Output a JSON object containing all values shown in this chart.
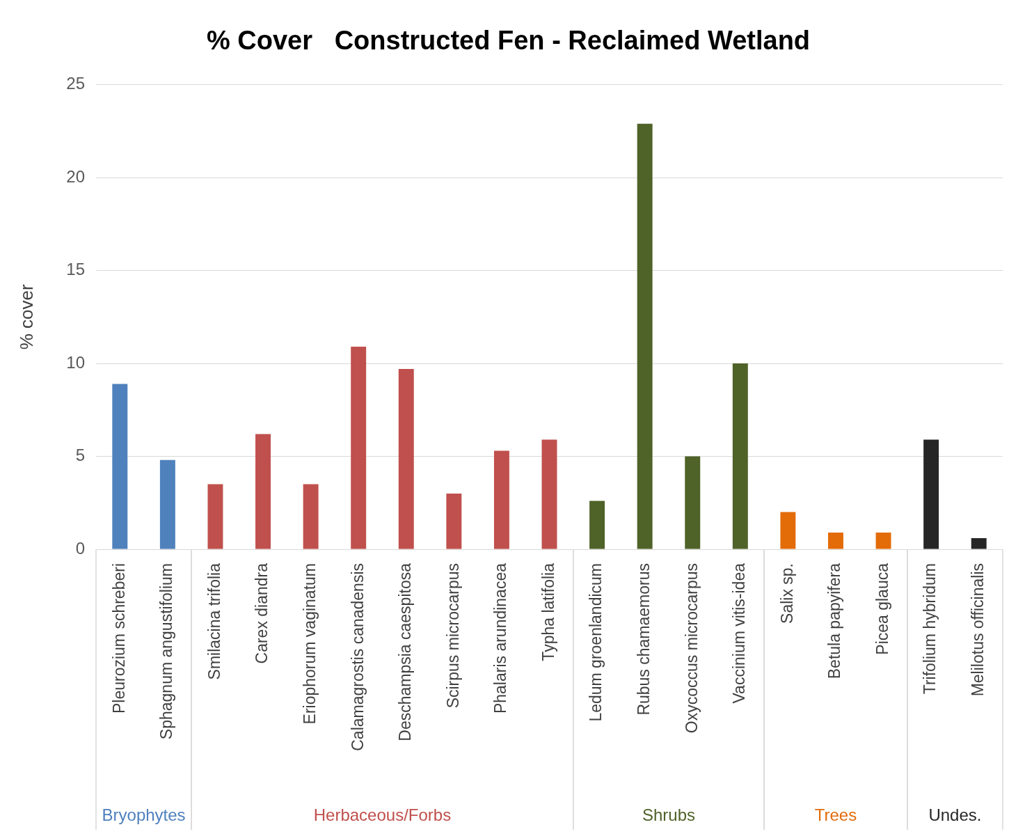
{
  "chart_data": {
    "type": "bar",
    "title": "% Cover   Constructed Fen - Reclaimed Wetland",
    "ylabel": "% cover",
    "categories": [
      "Pleurozium schreberi",
      "Sphagnum angustifolium",
      "Smilacina trifolia",
      "Carex diandra",
      "Eriophorum vaginatum",
      "Calamagrostis canadensis",
      "Deschampsia caespitosa",
      "Scirpus microcarpus",
      "Phalaris arundinacea",
      "Typha latifolia",
      "Ledum groenlandicum",
      "Rubus chamaemorus",
      "Oxycoccus microcarpus",
      "Vaccinium vitis-idea",
      "Salix sp.",
      "Betula papyifera",
      "Picea glauca",
      "Trifolium hybridum",
      "Melilotus officinalis"
    ],
    "series": [
      {
        "name": "Bryophytes",
        "color": "#4f81bd",
        "values": [
          8.9,
          4.8,
          null,
          null,
          null,
          null,
          null,
          null,
          null,
          null,
          null,
          null,
          null,
          null,
          null,
          null,
          null,
          null,
          null
        ]
      },
      {
        "name": "Herbaceous/Forbs",
        "color": "#c0504d",
        "values": [
          null,
          null,
          3.5,
          6.2,
          3.5,
          10.9,
          9.7,
          3.0,
          5.3,
          5.9,
          null,
          null,
          null,
          null,
          null,
          null,
          null,
          null,
          null
        ]
      },
      {
        "name": "Shrubs",
        "color": "#4f6228",
        "values": [
          null,
          null,
          null,
          null,
          null,
          null,
          null,
          null,
          null,
          null,
          2.6,
          22.9,
          5.0,
          10.0,
          null,
          null,
          null,
          null,
          null
        ]
      },
      {
        "name": "Trees",
        "color": "#e36c09",
        "values": [
          null,
          null,
          null,
          null,
          null,
          null,
          null,
          null,
          null,
          null,
          null,
          null,
          null,
          null,
          2.0,
          0.9,
          0.9,
          null,
          null
        ]
      },
      {
        "name": "Undes.",
        "color": "#262626",
        "values": [
          null,
          null,
          null,
          null,
          null,
          null,
          null,
          null,
          null,
          null,
          null,
          null,
          null,
          null,
          null,
          null,
          null,
          5.9,
          0.6
        ]
      }
    ],
    "ylim": [
      0,
      25
    ],
    "yticks": [
      0,
      5,
      10,
      15,
      20,
      25
    ],
    "grid": "y"
  }
}
